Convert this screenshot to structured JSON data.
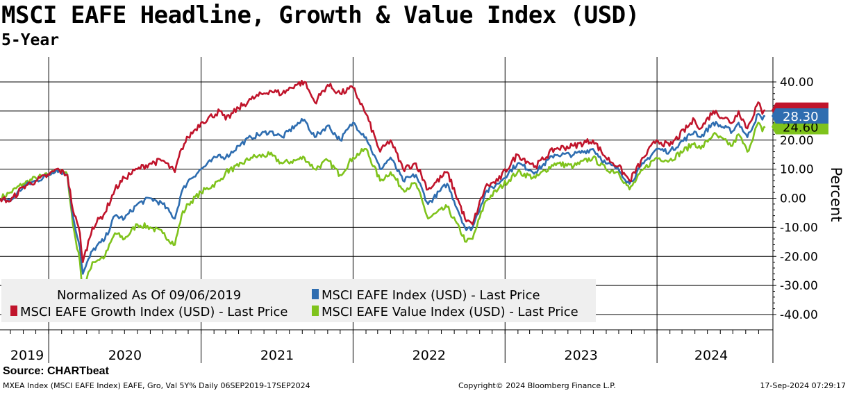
{
  "header": {
    "title": "MSCI EAFE Headline, Growth & Value Index (USD)",
    "subtitle": "5-Year"
  },
  "footer": {
    "source": "Source: CHARTbeat",
    "left": "MXEA Index (MSCI EAFE Index) EAFE, Gro, Val 5Y%  Daily 06SEP2019-17SEP2024",
    "center": "Copyright© 2024 Bloomberg Finance L.P.",
    "right": "17-Sep-2024 07:29:17"
  },
  "chart_data": {
    "type": "line",
    "title": "MSCI EAFE Headline, Growth & Value Index (USD)",
    "subtitle": "5-Year",
    "xlabel": "",
    "ylabel": "Percent",
    "y_axis_side": "right",
    "ylim": [
      -40,
      40
    ],
    "yticks": [
      40,
      30,
      20,
      10,
      0,
      -10,
      -20,
      -30,
      -40
    ],
    "ytick_labels": [
      "40.00",
      "30.00",
      "20.00",
      "10.00",
      "0.00",
      "-10.00",
      "-20.00",
      "-30.00",
      "-40.00"
    ],
    "xlim": [
      "2019-09-06",
      "2024-09-17"
    ],
    "year_labels": [
      "2019",
      "2020",
      "2021",
      "2022",
      "2023",
      "2024"
    ],
    "grid": true,
    "legend_placement": "bottom-left",
    "legend_note": "Normalized As Of 09/06/2019",
    "series": [
      {
        "name": "MSCI EAFE Index (USD) - Last Price",
        "color": "#2e6db0",
        "last_value": 28.3,
        "last_label": "28.30",
        "points": [
          [
            "2019-09-06",
            0
          ],
          [
            "2019-10-01",
            -1
          ],
          [
            "2019-11-01",
            4
          ],
          [
            "2019-12-01",
            6
          ],
          [
            "2020-01-02",
            8
          ],
          [
            "2020-01-20",
            10
          ],
          [
            "2020-02-15",
            8
          ],
          [
            "2020-02-28",
            -6
          ],
          [
            "2020-03-16",
            -17
          ],
          [
            "2020-03-23",
            -26
          ],
          [
            "2020-04-15",
            -18
          ],
          [
            "2020-05-15",
            -14
          ],
          [
            "2020-06-08",
            -6
          ],
          [
            "2020-07-01",
            -7
          ],
          [
            "2020-08-01",
            -2
          ],
          [
            "2020-09-01",
            0
          ],
          [
            "2020-10-01",
            -2
          ],
          [
            "2020-10-30",
            -7
          ],
          [
            "2020-11-15",
            2
          ],
          [
            "2020-12-01",
            6
          ],
          [
            "2021-01-01",
            10
          ],
          [
            "2021-02-15",
            15
          ],
          [
            "2021-03-01",
            14
          ],
          [
            "2021-04-01",
            18
          ],
          [
            "2021-05-01",
            21
          ],
          [
            "2021-06-15",
            23
          ],
          [
            "2021-07-15",
            21
          ],
          [
            "2021-08-15",
            25
          ],
          [
            "2021-09-06",
            27
          ],
          [
            "2021-10-01",
            21
          ],
          [
            "2021-11-01",
            25
          ],
          [
            "2021-12-01",
            20
          ],
          [
            "2022-01-01",
            26
          ],
          [
            "2022-02-01",
            21
          ],
          [
            "2022-03-07",
            10
          ],
          [
            "2022-04-01",
            14
          ],
          [
            "2022-05-01",
            6
          ],
          [
            "2022-06-01",
            8
          ],
          [
            "2022-06-30",
            -2
          ],
          [
            "2022-08-15",
            5
          ],
          [
            "2022-09-30",
            -11
          ],
          [
            "2022-10-15",
            -10
          ],
          [
            "2022-11-15",
            2
          ],
          [
            "2022-12-15",
            5
          ],
          [
            "2023-01-31",
            12
          ],
          [
            "2023-03-15",
            9
          ],
          [
            "2023-04-30",
            15
          ],
          [
            "2023-06-15",
            15
          ],
          [
            "2023-07-31",
            17
          ],
          [
            "2023-08-31",
            12
          ],
          [
            "2023-09-30",
            10
          ],
          [
            "2023-10-27",
            5
          ],
          [
            "2023-11-30",
            12
          ],
          [
            "2023-12-31",
            17
          ],
          [
            "2024-01-31",
            16
          ],
          [
            "2024-03-31",
            23
          ],
          [
            "2024-04-15",
            21
          ],
          [
            "2024-05-15",
            26
          ],
          [
            "2024-06-30",
            23
          ],
          [
            "2024-07-15",
            26
          ],
          [
            "2024-08-05",
            21
          ],
          [
            "2024-08-31",
            29
          ],
          [
            "2024-09-10",
            27
          ],
          [
            "2024-09-17",
            28.3
          ]
        ]
      },
      {
        "name": "MSCI EAFE Growth Index (USD) - Last Price",
        "color": "#c0142b",
        "last_value": 30.3,
        "last_label": "",
        "points": [
          [
            "2019-09-06",
            0
          ],
          [
            "2019-10-01",
            -1
          ],
          [
            "2019-11-01",
            4
          ],
          [
            "2019-12-01",
            6
          ],
          [
            "2020-01-02",
            8
          ],
          [
            "2020-01-20",
            10
          ],
          [
            "2020-02-15",
            8
          ],
          [
            "2020-02-28",
            -4
          ],
          [
            "2020-03-16",
            -12
          ],
          [
            "2020-03-23",
            -22
          ],
          [
            "2020-04-15",
            -10
          ],
          [
            "2020-05-15",
            -5
          ],
          [
            "2020-06-08",
            3
          ],
          [
            "2020-07-01",
            7
          ],
          [
            "2020-08-01",
            10
          ],
          [
            "2020-09-01",
            12
          ],
          [
            "2020-10-01",
            13
          ],
          [
            "2020-10-30",
            9
          ],
          [
            "2020-11-15",
            17
          ],
          [
            "2020-12-01",
            21
          ],
          [
            "2021-01-01",
            26
          ],
          [
            "2021-02-15",
            30
          ],
          [
            "2021-03-01",
            27
          ],
          [
            "2021-04-01",
            31
          ],
          [
            "2021-05-01",
            34
          ],
          [
            "2021-06-15",
            37
          ],
          [
            "2021-07-15",
            36
          ],
          [
            "2021-08-15",
            39
          ],
          [
            "2021-09-06",
            40
          ],
          [
            "2021-10-01",
            33
          ],
          [
            "2021-11-01",
            39
          ],
          [
            "2021-12-01",
            36
          ],
          [
            "2022-01-01",
            38
          ],
          [
            "2022-02-01",
            29
          ],
          [
            "2022-03-07",
            16
          ],
          [
            "2022-04-01",
            20
          ],
          [
            "2022-05-01",
            10
          ],
          [
            "2022-06-01",
            12
          ],
          [
            "2022-06-30",
            3
          ],
          [
            "2022-08-15",
            9
          ],
          [
            "2022-09-30",
            -8
          ],
          [
            "2022-10-15",
            -9
          ],
          [
            "2022-11-15",
            4
          ],
          [
            "2022-12-15",
            6
          ],
          [
            "2023-01-31",
            15
          ],
          [
            "2023-03-15",
            11
          ],
          [
            "2023-04-30",
            17
          ],
          [
            "2023-06-15",
            18
          ],
          [
            "2023-07-31",
            20
          ],
          [
            "2023-08-31",
            14
          ],
          [
            "2023-09-30",
            11
          ],
          [
            "2023-10-27",
            6
          ],
          [
            "2023-11-30",
            14
          ],
          [
            "2023-12-31",
            20
          ],
          [
            "2024-01-31",
            18
          ],
          [
            "2024-03-31",
            27
          ],
          [
            "2024-04-15",
            24
          ],
          [
            "2024-05-15",
            30
          ],
          [
            "2024-06-30",
            26
          ],
          [
            "2024-07-15",
            30
          ],
          [
            "2024-08-05",
            24
          ],
          [
            "2024-08-31",
            33
          ],
          [
            "2024-09-10",
            29
          ],
          [
            "2024-09-17",
            30.3
          ]
        ]
      },
      {
        "name": "MSCI EAFE Value Index (USD) - Last Price",
        "color": "#7fc31c",
        "last_value": 24.6,
        "last_label": "24.60",
        "points": [
          [
            "2019-09-06",
            0
          ],
          [
            "2019-10-01",
            2
          ],
          [
            "2019-11-01",
            5
          ],
          [
            "2019-12-01",
            7
          ],
          [
            "2020-01-02",
            8
          ],
          [
            "2020-01-20",
            10
          ],
          [
            "2020-02-15",
            8
          ],
          [
            "2020-02-28",
            -9
          ],
          [
            "2020-03-16",
            -22
          ],
          [
            "2020-03-23",
            -32
          ],
          [
            "2020-04-15",
            -22
          ],
          [
            "2020-05-15",
            -20
          ],
          [
            "2020-06-08",
            -12
          ],
          [
            "2020-07-01",
            -14
          ],
          [
            "2020-08-01",
            -9
          ],
          [
            "2020-09-01",
            -10
          ],
          [
            "2020-10-01",
            -12
          ],
          [
            "2020-10-30",
            -16
          ],
          [
            "2020-11-15",
            -6
          ],
          [
            "2020-12-01",
            -2
          ],
          [
            "2021-01-01",
            2
          ],
          [
            "2021-02-15",
            6
          ],
          [
            "2021-03-01",
            9
          ],
          [
            "2021-04-01",
            11
          ],
          [
            "2021-05-01",
            14
          ],
          [
            "2021-06-15",
            15
          ],
          [
            "2021-07-15",
            12
          ],
          [
            "2021-08-15",
            13
          ],
          [
            "2021-09-06",
            14
          ],
          [
            "2021-10-01",
            10
          ],
          [
            "2021-11-01",
            13
          ],
          [
            "2021-12-01",
            8
          ],
          [
            "2022-01-01",
            14
          ],
          [
            "2022-02-01",
            17
          ],
          [
            "2022-03-07",
            6
          ],
          [
            "2022-04-01",
            9
          ],
          [
            "2022-05-01",
            3
          ],
          [
            "2022-06-01",
            5
          ],
          [
            "2022-06-30",
            -7
          ],
          [
            "2022-08-15",
            -3
          ],
          [
            "2022-09-30",
            -15
          ],
          [
            "2022-10-15",
            -14
          ],
          [
            "2022-11-15",
            -1
          ],
          [
            "2022-12-15",
            3
          ],
          [
            "2023-01-31",
            9
          ],
          [
            "2023-03-15",
            7
          ],
          [
            "2023-04-30",
            12
          ],
          [
            "2023-06-15",
            11
          ],
          [
            "2023-07-31",
            14
          ],
          [
            "2023-08-31",
            10
          ],
          [
            "2023-09-30",
            9
          ],
          [
            "2023-10-27",
            3
          ],
          [
            "2023-11-30",
            10
          ],
          [
            "2023-12-31",
            14
          ],
          [
            "2024-01-31",
            13
          ],
          [
            "2024-03-31",
            19
          ],
          [
            "2024-04-15",
            17
          ],
          [
            "2024-05-15",
            22
          ],
          [
            "2024-06-30",
            18
          ],
          [
            "2024-07-15",
            22
          ],
          [
            "2024-08-05",
            16
          ],
          [
            "2024-08-31",
            26
          ],
          [
            "2024-09-10",
            23
          ],
          [
            "2024-09-17",
            24.6
          ]
        ]
      }
    ]
  }
}
